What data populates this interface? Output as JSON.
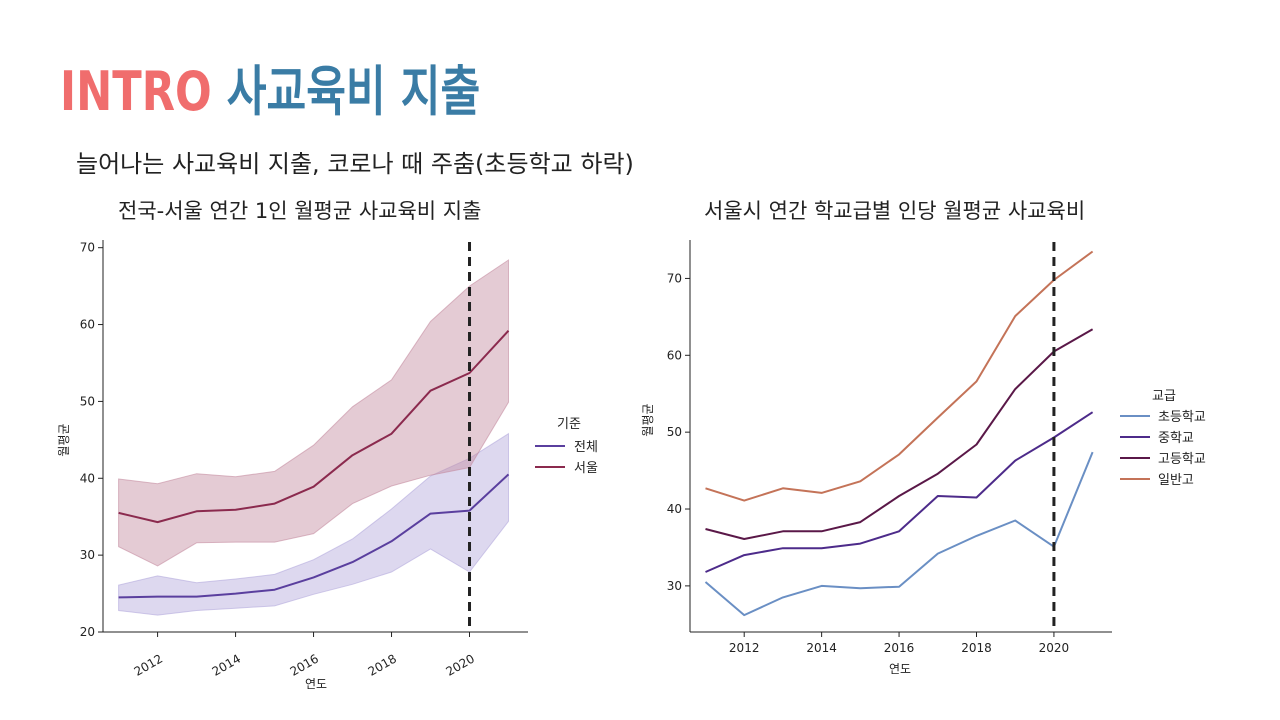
{
  "page": {
    "title_prefix": "INTRO",
    "title_main": "사교육비 지출",
    "subtitle": "늘어나는 사교육비 지출, 코로나 때 주춤(초등학교 하락)",
    "colors": {
      "title_prefix": "#f06d6d",
      "title_main": "#3a7ca5"
    }
  },
  "chart_data": [
    {
      "type": "line",
      "title": "전국-서울 연간 1인 월평균 사교육비 지출",
      "xlabel": "연도",
      "ylabel": "월평균",
      "xlim": [
        2010.6,
        2021.5
      ],
      "ylim": [
        20,
        71
      ],
      "xticks": [
        2012,
        2014,
        2016,
        2018,
        2020
      ],
      "yticks": [
        20,
        30,
        40,
        50,
        60,
        70
      ],
      "xtick_rotation": -30,
      "vline": {
        "x": 2020,
        "style": "dashed"
      },
      "legend": {
        "title": "기준",
        "position": "right"
      },
      "x": [
        2011,
        2012,
        2013,
        2014,
        2015,
        2016,
        2017,
        2018,
        2019,
        2020,
        2021
      ],
      "series": [
        {
          "name": "전체",
          "color": "#5a3f9e",
          "band_color": "#b3a8dc",
          "values": [
            24.5,
            24.6,
            24.6,
            25.0,
            25.5,
            27.1,
            29.1,
            31.8,
            35.4,
            35.8,
            40.5
          ],
          "lower": [
            22.8,
            22.2,
            22.8,
            23.1,
            23.4,
            24.9,
            26.2,
            27.8,
            30.8,
            27.8,
            34.4
          ],
          "upper": [
            26.1,
            27.3,
            26.4,
            26.9,
            27.5,
            29.4,
            32.1,
            36.0,
            40.3,
            42.6,
            45.8
          ]
        },
        {
          "name": "서울",
          "color": "#8b2a4e",
          "band_color": "#c48ca0",
          "values": [
            35.5,
            34.3,
            35.7,
            35.9,
            36.7,
            38.9,
            43.0,
            45.8,
            51.4,
            53.7,
            59.2
          ],
          "lower": [
            31.1,
            28.6,
            31.6,
            31.7,
            31.7,
            32.8,
            36.7,
            39.0,
            40.4,
            41.4,
            49.9
          ],
          "upper": [
            39.9,
            39.3,
            40.6,
            40.2,
            40.9,
            44.3,
            49.3,
            52.8,
            60.4,
            65.0,
            68.4
          ]
        }
      ]
    },
    {
      "type": "line",
      "title": "서울시 연간 학교급별 인당 월평균 사교육비",
      "xlabel": "연도",
      "ylabel": "월평균",
      "xlim": [
        2010.6,
        2021.5
      ],
      "ylim": [
        24,
        75
      ],
      "xticks": [
        2012,
        2014,
        2016,
        2018,
        2020
      ],
      "yticks": [
        30,
        40,
        50,
        60,
        70
      ],
      "vline": {
        "x": 2020,
        "style": "dashed"
      },
      "legend": {
        "title": "교급",
        "position": "right"
      },
      "x": [
        2011,
        2012,
        2013,
        2014,
        2015,
        2016,
        2017,
        2018,
        2019,
        2020,
        2021
      ],
      "series": [
        {
          "name": "초등학교",
          "color": "#6a8fc4",
          "values": [
            30.5,
            26.2,
            28.5,
            30.0,
            29.7,
            29.9,
            34.2,
            36.5,
            38.5,
            35.1,
            47.4
          ]
        },
        {
          "name": "중학교",
          "color": "#4d2b8a",
          "values": [
            31.8,
            34.0,
            34.9,
            34.9,
            35.5,
            37.1,
            41.7,
            41.5,
            46.3,
            49.3,
            52.6
          ]
        },
        {
          "name": "고등학교",
          "color": "#5a1848",
          "values": [
            37.4,
            36.1,
            37.1,
            37.1,
            38.3,
            41.7,
            44.6,
            48.4,
            55.6,
            60.5,
            63.4
          ]
        },
        {
          "name": "일반고",
          "color": "#c47358",
          "values": [
            42.7,
            41.1,
            42.7,
            42.1,
            43.6,
            47.1,
            51.9,
            56.6,
            65.1,
            69.8,
            73.5
          ]
        }
      ]
    }
  ]
}
